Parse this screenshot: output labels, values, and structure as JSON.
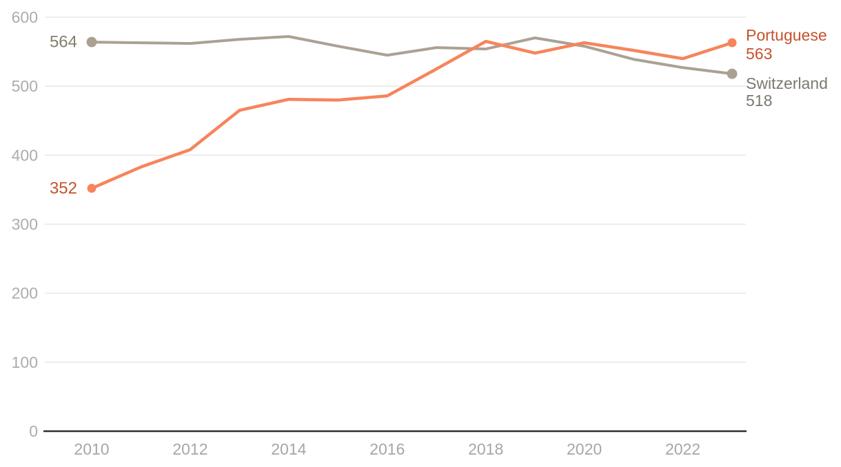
{
  "chart_data": {
    "type": "line",
    "title": "",
    "x": [
      2010,
      2011,
      2012,
      2013,
      2014,
      2015,
      2016,
      2017,
      2018,
      2019,
      2020,
      2021,
      2022,
      2023
    ],
    "series": [
      {
        "name": "Portuguese",
        "values": [
          352,
          383,
          408,
          465,
          481,
          480,
          486,
          525,
          565,
          548,
          563,
          552,
          540,
          563
        ],
        "line_color": "#F7845C",
        "text_color": "#C5522D",
        "start_text_color": "#C5522D",
        "start_label": "352",
        "end_name_label": "Portuguese",
        "end_value_label": "563"
      },
      {
        "name": "Switzerland",
        "values": [
          564,
          563,
          562,
          568,
          572,
          558,
          545,
          556,
          554,
          570,
          558,
          539,
          527,
          518
        ],
        "line_color": "#ABA193",
        "text_color": "#7C786F",
        "start_text_color": "#867E6D",
        "start_label": "564",
        "end_name_label": "Switzerland",
        "end_value_label": "518"
      }
    ],
    "x_ticks": [
      "2010",
      "2012",
      "2014",
      "2016",
      "2018",
      "2020",
      "2022"
    ],
    "y_ticks": [
      "0",
      "100",
      "200",
      "300",
      "400",
      "500",
      "600"
    ],
    "xlim": [
      2010,
      2023
    ],
    "ylim": [
      0,
      600
    ],
    "grid": "horizontal-only",
    "legend_position": "right-edge-annotations",
    "colors": {
      "background": "#FFFFFF",
      "grid_line": "#E8E8E8",
      "axis_line": "#2E2E2E",
      "y_tick_label": "#ACACAC",
      "x_tick_label": "#A6A6A6"
    }
  }
}
